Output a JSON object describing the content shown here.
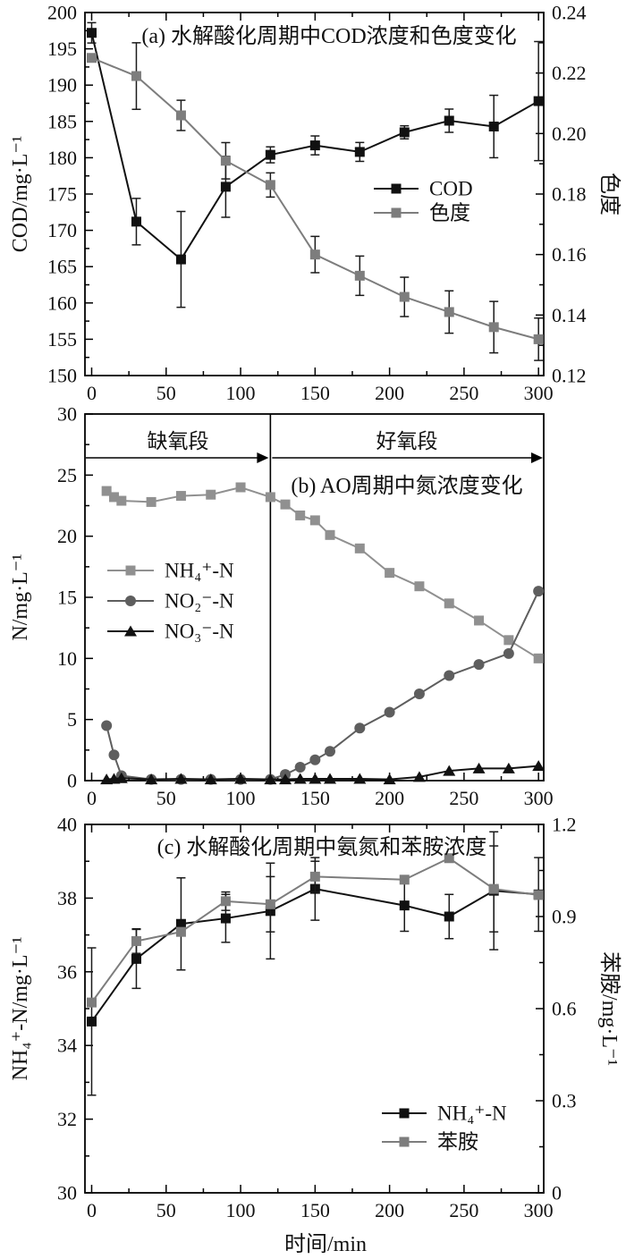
{
  "x_axis": {
    "label": "时间/min",
    "range": [
      0,
      300
    ],
    "tick_values": [
      0,
      50,
      100,
      150,
      200,
      250,
      300
    ],
    "tick_labels": [
      "0",
      "50",
      "100",
      "150",
      "200",
      "250",
      "300"
    ],
    "minor_step": 25
  },
  "colors": {
    "axis": "#000000",
    "error_bar": "#1a1a1a",
    "black_series": "#111111",
    "gray_series": "#7d7d7d"
  },
  "chart_data": [
    {
      "id": "a",
      "type": "line",
      "title": "(a) 水解酸化周期中COD浓度和色度变化",
      "y_left": {
        "label": "COD/mg·L⁻¹",
        "min": 150,
        "max": 200,
        "minor_step": 2.5,
        "tick_values": [
          150,
          155,
          160,
          165,
          170,
          175,
          180,
          185,
          190,
          195,
          200
        ],
        "tick_labels": [
          "150",
          "155",
          "160",
          "165",
          "170",
          "175",
          "180",
          "185",
          "190",
          "195",
          "200"
        ]
      },
      "y_right": {
        "label": "色度",
        "min": 0.12,
        "max": 0.24,
        "minor_step": 0.01,
        "tick_values": [
          0.12,
          0.14,
          0.16,
          0.18,
          0.2,
          0.22,
          0.24
        ],
        "tick_labels": [
          "0.12",
          "0.14",
          "0.16",
          "0.18",
          "0.20",
          "0.22",
          "0.24"
        ]
      },
      "series": [
        {
          "key": "cod",
          "name": "COD",
          "axis": "left",
          "marker": "square",
          "color": "#111111",
          "x": [
            0,
            30,
            60,
            90,
            120,
            150,
            180,
            210,
            240,
            270,
            300
          ],
          "y": [
            197.2,
            171.2,
            166.0,
            176.0,
            180.4,
            181.7,
            180.8,
            183.5,
            185.1,
            184.3,
            187.8
          ],
          "err": [
            1.4,
            3.2,
            6.6,
            4.2,
            1.1,
            1.3,
            1.3,
            0.9,
            1.6,
            4.3,
            8.2
          ]
        },
        {
          "key": "sedu",
          "name": "色度",
          "axis": "right",
          "marker": "square",
          "color": "#7d7d7d",
          "x": [
            0,
            30,
            60,
            90,
            120,
            150,
            180,
            210,
            240,
            270,
            300
          ],
          "y": [
            0.225,
            0.219,
            0.206,
            0.191,
            0.183,
            0.16,
            0.153,
            0.146,
            0.141,
            0.136,
            0.132
          ],
          "err": [
            0,
            0.011,
            0.005,
            0.006,
            0.004,
            0.006,
            0.0065,
            0.0065,
            0.007,
            0.0085,
            0.007
          ]
        }
      ],
      "legend": [
        "COD",
        "色度"
      ]
    },
    {
      "id": "b",
      "type": "line",
      "title": "(b) AO周期中氮浓度变化",
      "divider_x": 120,
      "regions": [
        {
          "label": "缺氧段",
          "from": 0,
          "to": 120
        },
        {
          "label": "好氧段",
          "from": 120,
          "to": 300
        }
      ],
      "y_left": {
        "label": "N/mg·L⁻¹",
        "min": 0,
        "max": 30,
        "minor_step": 2.5,
        "tick_values": [
          0,
          5,
          10,
          15,
          20,
          25,
          30
        ],
        "tick_labels": [
          "0",
          "5",
          "10",
          "15",
          "20",
          "25",
          "30"
        ]
      },
      "series": [
        {
          "key": "nh4",
          "name": "NH₄⁺-N",
          "axis": "left",
          "marker": "square",
          "color": "#909090",
          "x": [
            10,
            15,
            20,
            40,
            60,
            80,
            100,
            120,
            130,
            140,
            150,
            160,
            180,
            200,
            220,
            240,
            260,
            280,
            300
          ],
          "y": [
            23.7,
            23.2,
            22.9,
            22.8,
            23.3,
            23.4,
            24.0,
            23.2,
            22.6,
            21.7,
            21.3,
            20.1,
            19.0,
            17.0,
            15.9,
            14.5,
            13.1,
            11.5,
            10.0
          ]
        },
        {
          "key": "no2",
          "name": "NO₂⁻-N",
          "axis": "left",
          "marker": "circle",
          "color": "#5e5e5e",
          "x": [
            10,
            15,
            20,
            40,
            60,
            80,
            100,
            120,
            130,
            140,
            150,
            160,
            180,
            200,
            220,
            240,
            260,
            280,
            300
          ],
          "y": [
            4.5,
            2.1,
            0.4,
            0.1,
            0.1,
            0.1,
            0.1,
            0.1,
            0.5,
            1.1,
            1.7,
            2.4,
            4.3,
            5.6,
            7.1,
            8.6,
            9.5,
            10.4,
            15.5
          ]
        },
        {
          "key": "no3",
          "name": "NO₃⁻-N",
          "axis": "left",
          "marker": "triangle",
          "color": "#111111",
          "x": [
            10,
            15,
            20,
            40,
            60,
            80,
            100,
            120,
            130,
            140,
            150,
            160,
            180,
            200,
            220,
            240,
            260,
            280,
            300
          ],
          "y": [
            0.1,
            0.15,
            0.2,
            0.1,
            0.15,
            0.1,
            0.15,
            0.1,
            0.1,
            0.15,
            0.15,
            0.15,
            0.15,
            0.1,
            0.3,
            0.8,
            1.0,
            1.0,
            1.2
          ]
        }
      ],
      "legend": [
        "NH₄⁺-N",
        "NO₂⁻-N",
        "NO₃⁻-N"
      ]
    },
    {
      "id": "c",
      "type": "line",
      "title": "(c) 水解酸化周期中氨氮和苯胺浓度",
      "y_left": {
        "label": "NH₄⁺-N/mg·L⁻¹",
        "min": 30,
        "max": 40,
        "minor_step": 1,
        "tick_values": [
          30,
          32,
          34,
          36,
          38,
          40
        ],
        "tick_labels": [
          "30",
          "32",
          "34",
          "36",
          "38",
          "40"
        ]
      },
      "y_right": {
        "label": "苯胺/mg·L⁻¹",
        "min": 0,
        "max": 1.2,
        "minor_step": 0.15,
        "tick_values": [
          0,
          0.3,
          0.6,
          0.9,
          1.2
        ],
        "tick_labels": [
          "0",
          "0.3",
          "0.6",
          "0.9",
          "1.2"
        ]
      },
      "series": [
        {
          "key": "nh4c",
          "name": "NH₄⁺-N",
          "axis": "left",
          "marker": "square",
          "color": "#111111",
          "x": [
            0,
            30,
            60,
            90,
            120,
            150,
            210,
            240,
            270,
            300
          ],
          "y": [
            34.65,
            36.35,
            37.3,
            37.45,
            37.65,
            38.25,
            37.8,
            37.5,
            38.2,
            38.1
          ],
          "err": [
            2.0,
            0.8,
            1.25,
            0.65,
            1.3,
            0.85,
            0.7,
            0.6,
            1.6,
            1.0
          ]
        },
        {
          "key": "aniline",
          "name": "苯胺",
          "axis": "right",
          "marker": "square",
          "color": "#7d7d7d",
          "x": [
            0,
            30,
            60,
            90,
            120,
            150,
            210,
            240,
            270,
            300
          ],
          "y": [
            0.62,
            0.82,
            0.85,
            0.95,
            0.94,
            1.03,
            1.02,
            1.09,
            0.99,
            0.97
          ],
          "err": [
            0,
            0.04,
            0,
            0.03,
            0.09,
            0.05,
            0,
            0,
            0.14,
            0
          ]
        }
      ],
      "legend": [
        "NH₄⁺-N",
        "苯胺"
      ]
    }
  ]
}
